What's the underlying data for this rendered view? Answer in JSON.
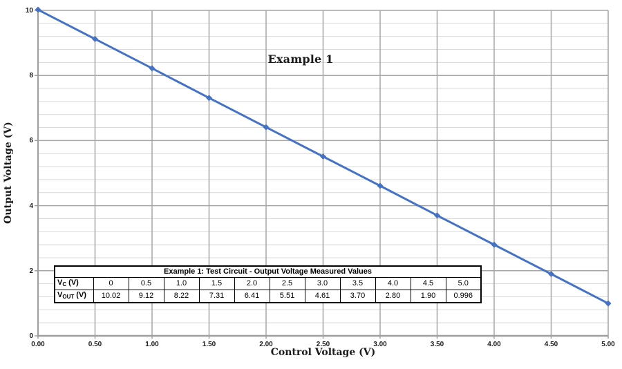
{
  "chart_data": {
    "type": "line",
    "title": "Example 1",
    "xlabel": "Control Voltage (V)",
    "ylabel": "Output Voltage (V)",
    "series": [
      {
        "name": "Output Voltage Measured Values",
        "x": [
          0,
          0.5,
          1.0,
          1.5,
          2.0,
          2.5,
          3.0,
          3.5,
          4.0,
          4.5,
          5.0
        ],
        "y": [
          10.02,
          9.12,
          8.22,
          7.31,
          6.41,
          5.51,
          4.61,
          3.7,
          2.8,
          1.9,
          0.996
        ]
      }
    ],
    "xlim": [
      0,
      5
    ],
    "ylim": [
      0,
      10
    ],
    "x_tick_values": [
      0,
      0.5,
      1.0,
      1.5,
      2.0,
      2.5,
      3.0,
      3.5,
      4.0,
      4.5,
      5.0
    ],
    "x_tick_labels": [
      "0.00",
      "0.50",
      "1.00",
      "1.50",
      "2.00",
      "2.50",
      "3.00",
      "3.50",
      "4.00",
      "4.50",
      "5.00"
    ],
    "y_tick_values": [
      0,
      2,
      4,
      6,
      8,
      10
    ],
    "y_tick_labels": [
      "0",
      "2",
      "4",
      "6",
      "8",
      "10"
    ],
    "y_minor_step": 0.4,
    "grid": true,
    "legend": "none",
    "marker": "diamond",
    "colors": {
      "line": "#4472C4",
      "marker": "#4472C4",
      "major_grid": "#A6A6A6",
      "minor_grid": "#D9D9D9",
      "axis": "#9E9E9E"
    }
  },
  "table": {
    "title": "Example 1: Test Circuit - Output Voltage Measured Values",
    "rows": [
      {
        "label_base": "V",
        "label_sub": "C",
        "label_suffix": " (V)",
        "values": [
          "0",
          "0.5",
          "1.0",
          "1.5",
          "2.0",
          "2.5",
          "3.0",
          "3.5",
          "4.0",
          "4.5",
          "5.0"
        ]
      },
      {
        "label_base": "V",
        "label_sub": "OUT",
        "label_suffix": " (V)",
        "values": [
          "10.02",
          "9.12",
          "8.22",
          "7.31",
          "6.41",
          "5.51",
          "4.61",
          "3.70",
          "2.80",
          "1.90",
          "0.996"
        ]
      }
    ]
  }
}
